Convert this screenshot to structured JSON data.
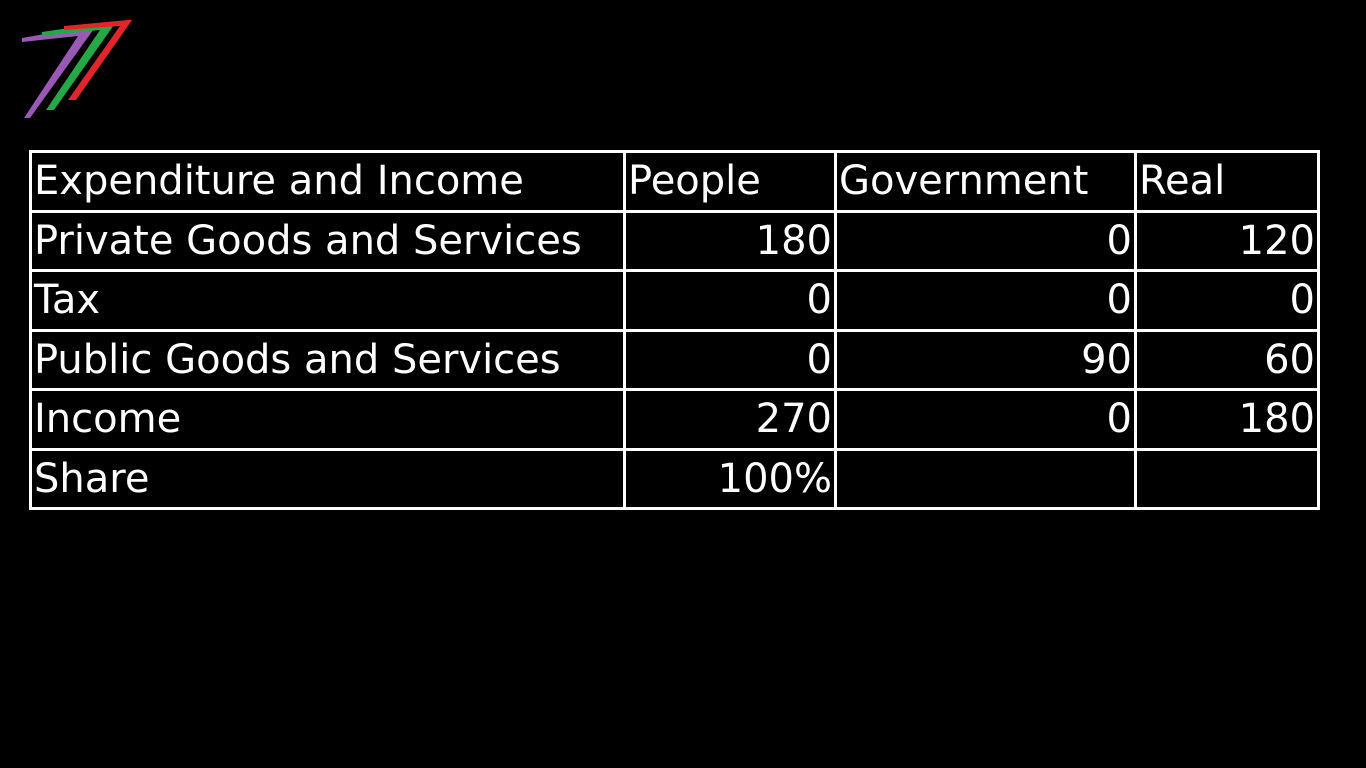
{
  "logo": {
    "icon": "seven-stripes-logo",
    "colors": [
      "#e0262b",
      "#27a848",
      "#9b59b6"
    ]
  },
  "table": {
    "headers": [
      "Expenditure and Income",
      "People",
      "Government",
      "Real"
    ],
    "rows": [
      {
        "label": "Private Goods and Services",
        "people": "180",
        "government": "0",
        "real": "120"
      },
      {
        "label": "Tax",
        "people": "0",
        "government": "0",
        "real": "0"
      },
      {
        "label": "Public Goods and Services",
        "people": "0",
        "government": "90",
        "real": "60"
      },
      {
        "label": "Income",
        "people": "270",
        "government": "0",
        "real": "180"
      },
      {
        "label": "Share",
        "people": "100%",
        "government": "",
        "real": ""
      }
    ]
  }
}
